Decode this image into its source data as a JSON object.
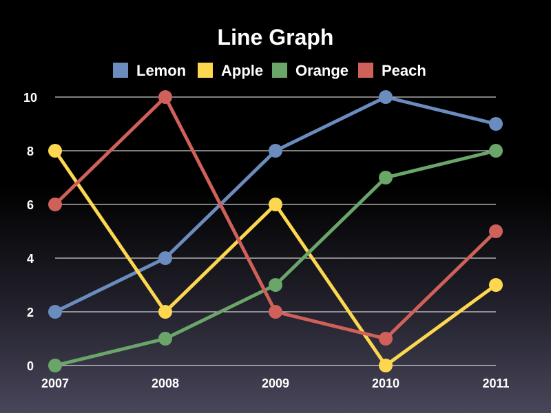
{
  "chart_data": {
    "type": "line",
    "title": "Line Graph",
    "xlabel": "",
    "ylabel": "",
    "categories": [
      "2007",
      "2008",
      "2009",
      "2010",
      "2011"
    ],
    "ylim": [
      0,
      10
    ],
    "yticks": [
      0,
      2,
      4,
      6,
      8,
      10
    ],
    "grid": true,
    "legend_position": "top",
    "series": [
      {
        "name": "Lemon",
        "color": "#6b8cbf",
        "values": [
          2,
          4,
          8,
          10,
          9
        ]
      },
      {
        "name": "Apple",
        "color": "#fdd74f",
        "values": [
          8,
          2,
          6,
          0,
          3
        ]
      },
      {
        "name": "Orange",
        "color": "#6aa56a",
        "values": [
          0,
          1,
          3,
          7,
          8
        ]
      },
      {
        "name": "Peach",
        "color": "#d0605a",
        "values": [
          6,
          10,
          2,
          1,
          5
        ]
      }
    ]
  }
}
